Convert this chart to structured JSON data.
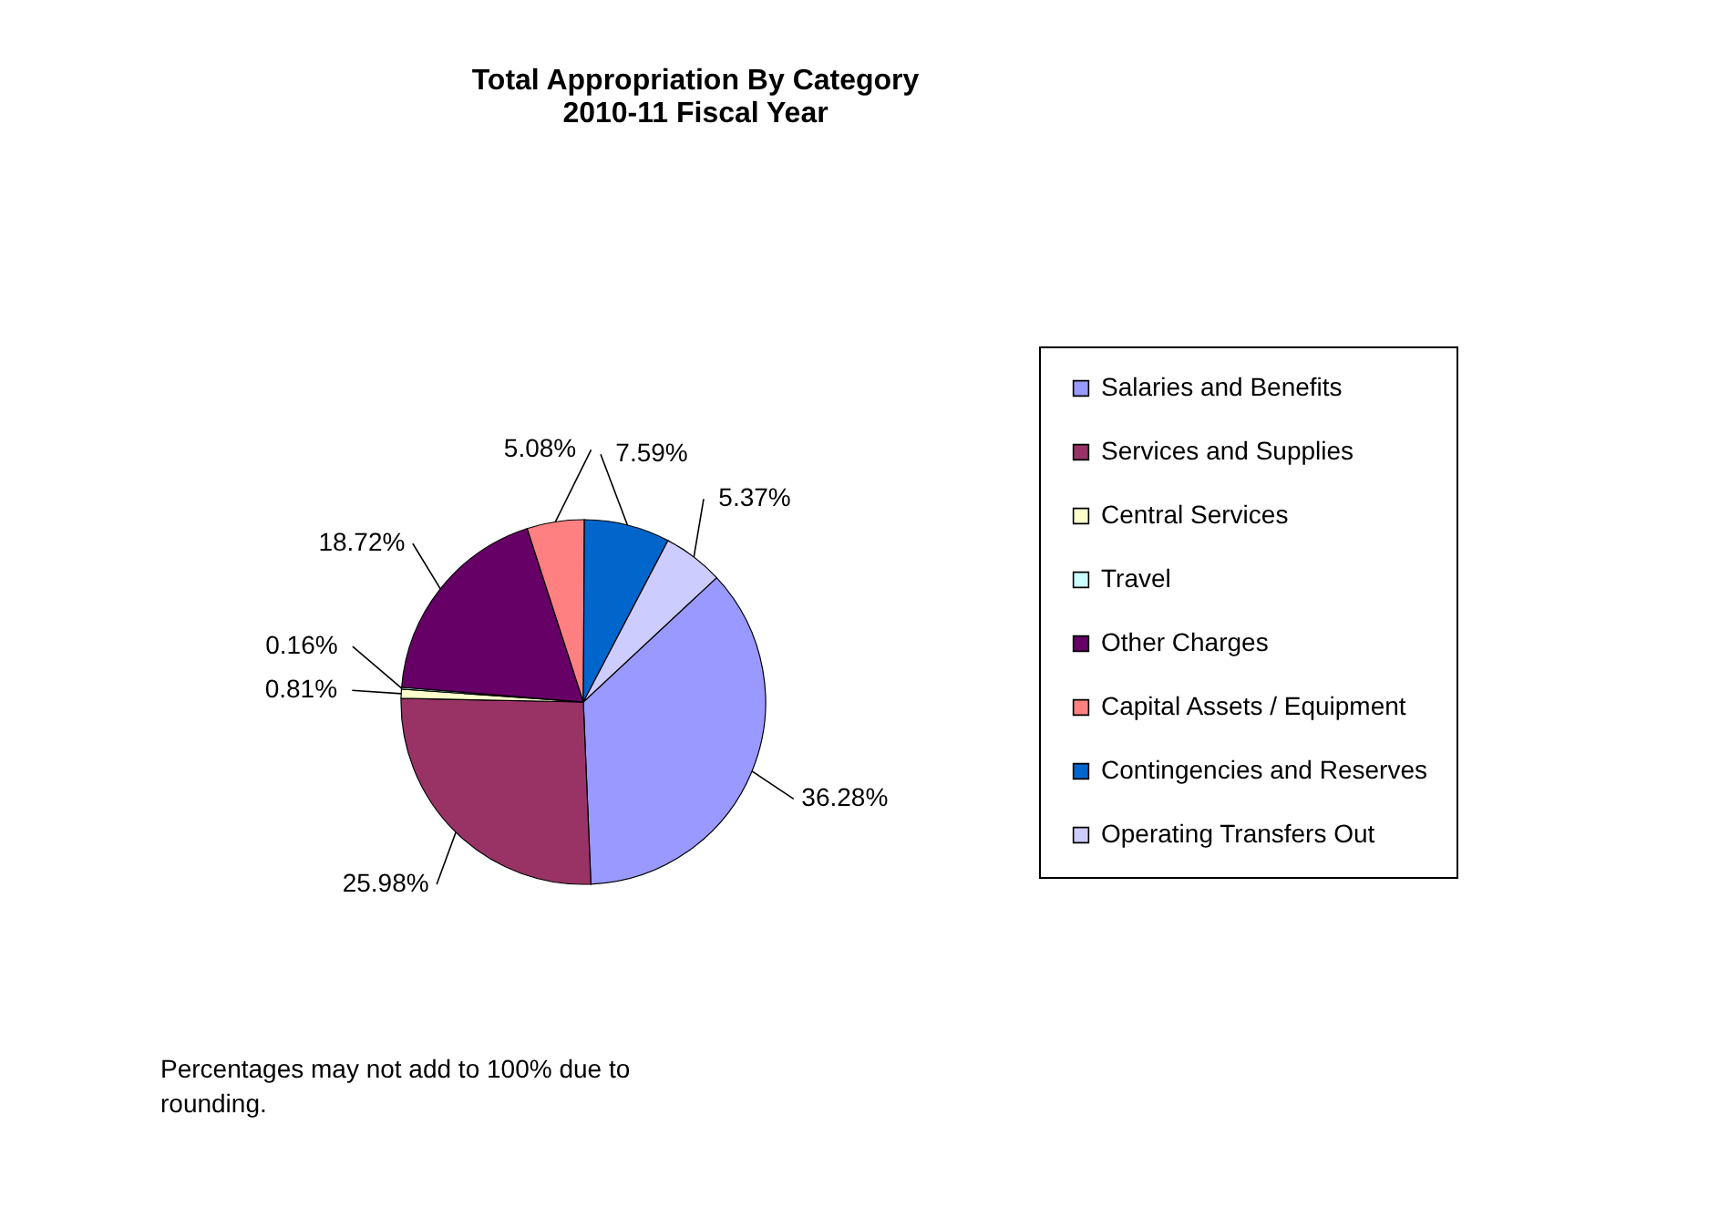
{
  "chart_data": {
    "type": "pie",
    "title": "Total Appropriation By Category",
    "subtitle": "2010-11 Fiscal Year",
    "categories": [
      "Salaries and Benefits",
      "Services and Supplies",
      "Central Services",
      "Travel",
      "Other Charges",
      "Capital Assets / Equipment",
      "Contingencies and Reserves",
      "Operating Transfers Out"
    ],
    "values": [
      36.28,
      25.98,
      0.81,
      0.16,
      18.72,
      5.08,
      7.59,
      5.37
    ],
    "value_labels": [
      "36.28%",
      "25.98%",
      "0.81%",
      "0.16%",
      "18.72%",
      "5.08%",
      "7.59%",
      "5.37%"
    ],
    "colors": [
      "#9999ff",
      "#993366",
      "#ffffcc",
      "#ccffff",
      "#660066",
      "#ff8080",
      "#0066cc",
      "#ccccff"
    ],
    "legend": "right",
    "annotations": [
      "Percentages may  not add to 100% due to rounding."
    ]
  }
}
